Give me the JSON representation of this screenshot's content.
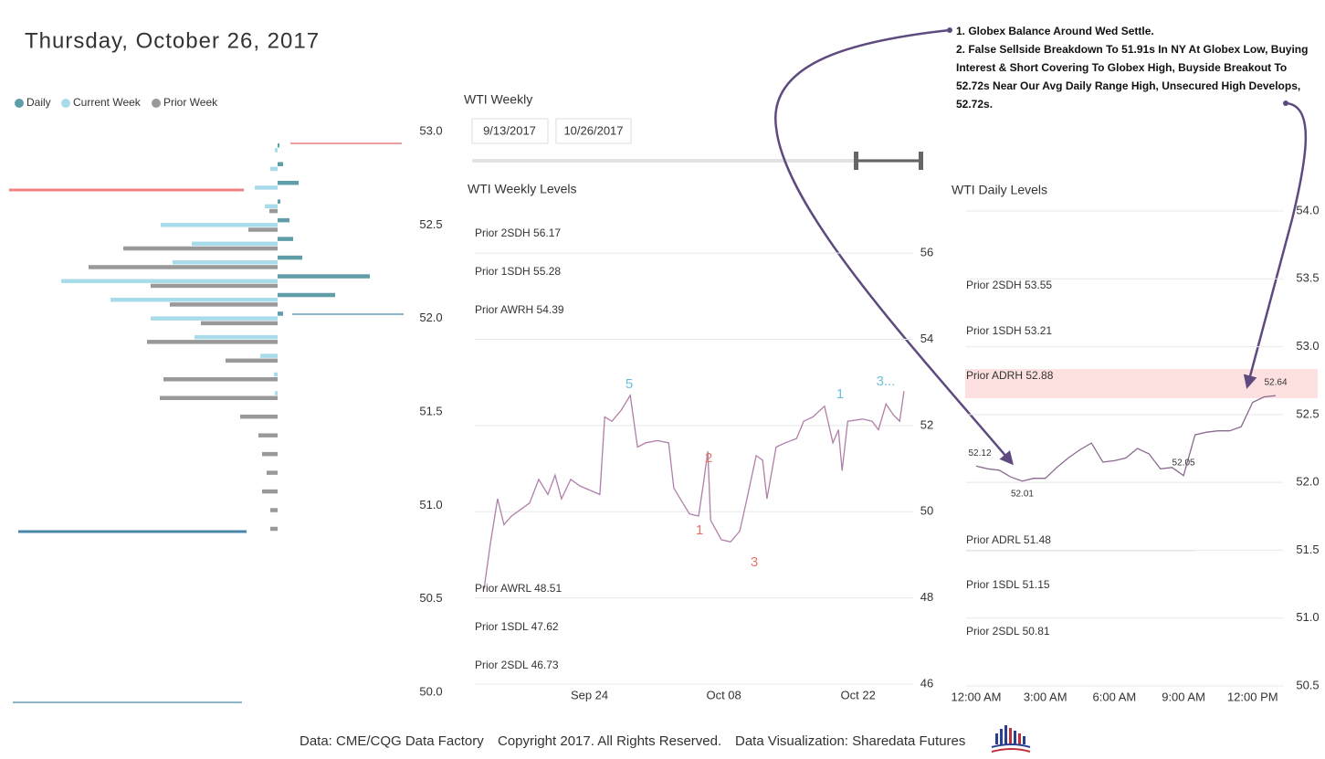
{
  "title": "Thursday, October 26, 2017",
  "notes": [
    "1. Globex Balance Around Wed Settle.",
    "2. False Sellside Breakdown To 51.91s In NY At Globex Low, Buying Interest & Short Covering To Globex High, Buyside Breakout To 52.72s Near Our Avg Daily Range High, Unsecured High Develops, 52.72s."
  ],
  "slicer": {
    "title": "WTI Weekly",
    "start": "9/13/2017",
    "end": "10/26/2017"
  },
  "footer": [
    "Data: CME/CQG Data Factory",
    "Copyright 2017. All Rights Reserved.",
    "Data Visualization: Sharedata Futures"
  ],
  "chart_data": [
    {
      "type": "bar",
      "orientation": "horizontal",
      "y": [
        52.9,
        52.8,
        52.7,
        52.6,
        52.5,
        52.4,
        52.3,
        52.2,
        52.1,
        52.0,
        51.9,
        51.8,
        51.7,
        51.6,
        51.5,
        51.4,
        51.3,
        51.2,
        51.1,
        51.0,
        50.9
      ],
      "series": [
        {
          "name": "Daily",
          "color": "#5f9ea9",
          "side": "right",
          "values": [
            2,
            6,
            23,
            3,
            13,
            17,
            27,
            101,
            63,
            6,
            0,
            0,
            0,
            0,
            0,
            0,
            0,
            0,
            0,
            0,
            0
          ]
        },
        {
          "name": "Current Week",
          "color": "#a9dcea",
          "side": "left",
          "values": [
            3,
            8,
            25,
            14,
            128,
            94,
            115,
            237,
            183,
            139,
            91,
            19,
            4,
            3,
            0,
            0,
            0,
            0,
            0,
            0,
            0
          ]
        },
        {
          "name": "Prior Week",
          "color": "#999999",
          "side": "left",
          "values": [
            0,
            0,
            0,
            9,
            32,
            169,
            207,
            139,
            118,
            84,
            143,
            57,
            125,
            129,
            41,
            21,
            17,
            12,
            17,
            8,
            8
          ]
        }
      ],
      "xlim": [
        0,
        240
      ],
      "ylim": [
        50,
        53
      ],
      "yticks": [
        {
          "value": 50,
          "label": "50.0"
        },
        50.5,
        {
          "value": 51,
          "label": "51.0"
        },
        51.5,
        {
          "value": 52,
          "label": "52.0"
        },
        52.5,
        {
          "value": 53,
          "label": "53.0"
        }
      ],
      "legend": "top-left"
    },
    {
      "type": "line",
      "title": "WTI Weekly Levels",
      "color": "#b07fa8",
      "x": [
        "2017-09-13T00:00",
        "2017-09-13T16:00",
        "2017-09-14T10:00",
        "2017-09-15T02:00",
        "2017-09-15T21:00",
        "2017-09-17T18:00",
        "2017-09-18T17:00",
        "2017-09-19T16:00",
        "2017-09-20T10:00",
        "2017-09-21T02:00",
        "2017-09-22T01:00",
        "2017-09-23T00:00",
        "2017-09-25T02:00",
        "2017-09-25T14:00",
        "2017-09-26T08:00",
        "2017-09-27T07:00",
        "2017-09-28T06:00",
        "2017-09-29T00:00",
        "2017-09-29T21:00",
        "2017-10-01T02:00",
        "2017-10-02T06:00",
        "2017-10-02T19:00",
        "2017-10-03T11:00",
        "2017-10-04T10:00",
        "2017-10-05T09:00",
        "2017-10-05T21:00",
        "2017-10-06T08:00",
        "2017-10-06T15:00",
        "2017-10-07T18:00",
        "2017-10-08T17:00",
        "2017-10-09T16:00",
        "2017-10-10T10:00",
        "2017-10-11T09:00",
        "2017-10-12T01:00",
        "2017-10-12T12:00",
        "2017-10-13T11:00",
        "2017-10-14T10:00",
        "2017-10-15T14:00",
        "2017-10-16T08:00",
        "2017-10-17T07:00",
        "2017-10-18T12:00",
        "2017-10-19T09:00",
        "2017-10-19T23:00",
        "2017-10-20T08:00",
        "2017-10-20T22:00",
        "2017-10-22T12:00",
        "2017-10-23T11:00",
        "2017-10-24T03:00",
        "2017-10-24T22:00",
        "2017-10-25T16:00",
        "2017-10-26T08:00",
        "2017-10-26T19:00"
      ],
      "values": [
        48.2,
        49.26,
        50.3,
        49.7,
        49.9,
        50.2,
        50.75,
        50.4,
        50.85,
        50.3,
        50.75,
        50.6,
        50.4,
        52.2,
        52.1,
        52.35,
        52.7,
        51.5,
        51.6,
        51.65,
        51.6,
        50.55,
        50.3,
        49.95,
        49.9,
        50.65,
        51.4,
        49.8,
        49.35,
        49.3,
        49.55,
        50.3,
        51.3,
        51.2,
        50.3,
        51.5,
        51.6,
        51.7,
        52.1,
        52.2,
        52.45,
        51.6,
        51.9,
        50.95,
        52.1,
        52.15,
        52.1,
        51.9,
        52.5,
        52.25,
        52.1,
        52.8
      ],
      "xlim": [
        "2017-09-13T00:00",
        "2017-10-26T19:00"
      ],
      "xticks": [
        {
          "value": "2017-09-24T00:00",
          "label": "Sep 24"
        },
        {
          "value": "2017-10-08T00:00",
          "label": "Oct 08"
        },
        {
          "value": "2017-10-22T00:00",
          "label": "Oct 22"
        }
      ],
      "ylim": [
        46,
        57
      ],
      "yticks": [
        46,
        48,
        50,
        52,
        54,
        56
      ],
      "grid": true,
      "levels": [
        {
          "label": "Prior 2SDH 56.17",
          "color": "#b84c4c"
        },
        {
          "label": "Prior 1SDH 55.28",
          "color": "#e06b6b"
        },
        {
          "label": "Prior AWRH 54.39",
          "color": "#f0a0a0"
        },
        {
          "label": "Prior AWRL 48.51",
          "color": "#5a8ea0"
        },
        {
          "label": "Prior 1SDL 47.62",
          "color": "#5a8ea0"
        },
        {
          "label": "Prior 2SDL 46.73",
          "color": "#5a8ea0"
        }
      ],
      "annotations": [
        {
          "text": "5",
          "color": "#6cc0dc"
        },
        {
          "text": "2",
          "color": "#e8736b"
        },
        {
          "text": "1",
          "color": "#e8736b"
        },
        {
          "text": "3",
          "color": "#e8736b"
        },
        {
          "text": "1",
          "color": "#6cc0dc"
        },
        {
          "text": "3...",
          "color": "#6cc0dc"
        }
      ]
    },
    {
      "type": "line",
      "title": "WTI Daily Levels",
      "color": "#8a6a90",
      "x": [
        "2017-10-26T00:00",
        "2017-10-26T00:30",
        "2017-10-26T01:00",
        "2017-10-26T01:30",
        "2017-10-26T02:00",
        "2017-10-26T02:30",
        "2017-10-26T03:00",
        "2017-10-26T03:30",
        "2017-10-26T04:00",
        "2017-10-26T04:30",
        "2017-10-26T05:00",
        "2017-10-26T05:30",
        "2017-10-26T06:00",
        "2017-10-26T06:30",
        "2017-10-26T07:00",
        "2017-10-26T07:30",
        "2017-10-26T08:00",
        "2017-10-26T08:30",
        "2017-10-26T09:00",
        "2017-10-26T09:30",
        "2017-10-26T10:00",
        "2017-10-26T10:30",
        "2017-10-26T11:00",
        "2017-10-26T11:30",
        "2017-10-26T12:00",
        "2017-10-26T12:30",
        "2017-10-26T13:00"
      ],
      "values": [
        52.12,
        52.1,
        52.09,
        52.04,
        52.01,
        52.03,
        52.03,
        52.11,
        52.18,
        52.24,
        52.29,
        52.15,
        52.16,
        52.18,
        52.25,
        52.21,
        52.1,
        52.11,
        52.05,
        52.35,
        52.37,
        52.38,
        52.38,
        52.41,
        52.59,
        52.63,
        52.64
      ],
      "value_labels": [
        "52.12",
        null,
        null,
        null,
        "52.01",
        null,
        null,
        null,
        null,
        null,
        null,
        null,
        null,
        null,
        null,
        null,
        null,
        null,
        "52.05",
        null,
        null,
        null,
        null,
        null,
        null,
        null,
        "52.64"
      ],
      "xlim": [
        "2017-10-26T00:00",
        "2017-10-26T13:00"
      ],
      "xticks": [
        {
          "value": "2017-10-26T00:00",
          "label": "12:00 AM"
        },
        {
          "value": "2017-10-26T03:00",
          "label": "3:00 AM"
        },
        {
          "value": "2017-10-26T06:00",
          "label": "6:00 AM"
        },
        {
          "value": "2017-10-26T09:00",
          "label": "9:00 AM"
        },
        {
          "value": "2017-10-26T12:00",
          "label": "12:00 PM"
        }
      ],
      "ylim": [
        50.5,
        54
      ],
      "yticks": [
        50.5,
        {
          "value": 51,
          "label": "51.0"
        },
        51.5,
        {
          "value": 52,
          "label": "52.0"
        },
        52.5,
        {
          "value": 53,
          "label": "53.0"
        },
        53.5,
        {
          "value": 54,
          "label": "54.0"
        }
      ],
      "grid": true,
      "levels": [
        {
          "label": "Prior 2SDH 53.55",
          "color": "#b84c4c"
        },
        {
          "label": "Prior 1SDH 53.21",
          "color": "#c85a5a"
        },
        {
          "label": "Prior ADRH 52.88",
          "color": "#e58080"
        },
        {
          "label": "Prior ADRL 51.48",
          "color": "#5a8ea0"
        },
        {
          "label": "Prior 1SDL 51.15",
          "color": "#5a8ea0"
        },
        {
          "label": "Prior 2SDL 50.81",
          "color": "#5a8ea0"
        }
      ]
    }
  ]
}
